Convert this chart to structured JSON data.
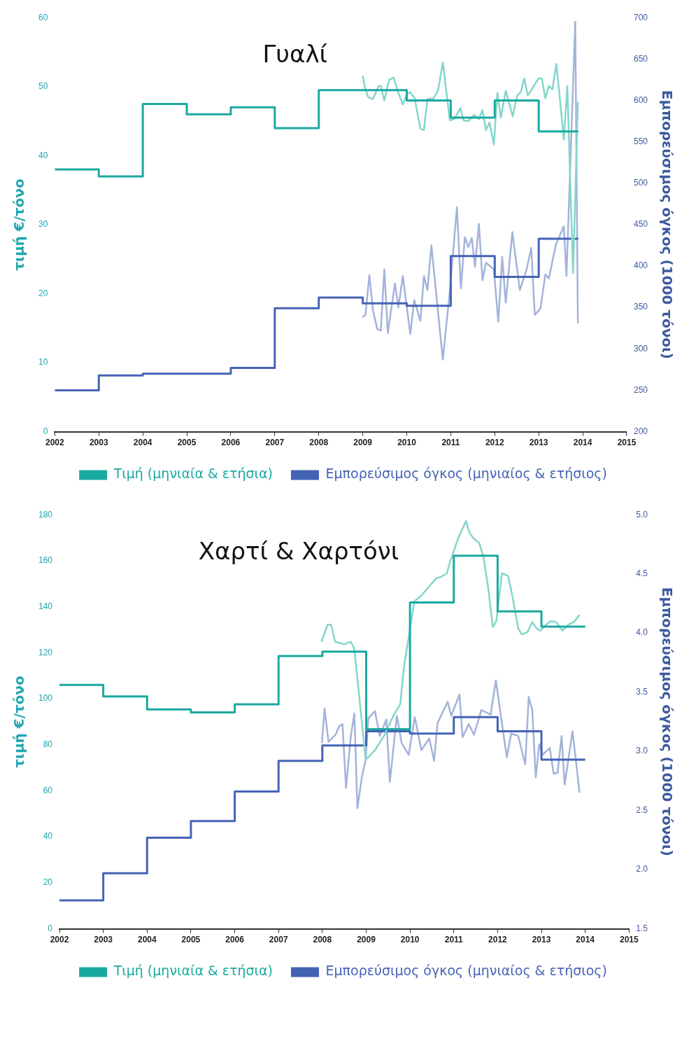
{
  "chart_data": [
    {
      "type": "line",
      "title": "Γυαλί",
      "ylabel": "τιμή €/τόνο",
      "y2label": "Εμπορεύσιμος όγκος (1000 τόνοι)",
      "xlim": [
        2002,
        2015
      ],
      "xticks": [
        2002,
        2003,
        2004,
        2005,
        2006,
        2007,
        2008,
        2009,
        2010,
        2011,
        2012,
        2013,
        2014,
        2015
      ],
      "ylim": [
        0,
        60
      ],
      "yticks": [
        0,
        10,
        20,
        30,
        40,
        50,
        60
      ],
      "y2lim": [
        200,
        700
      ],
      "y2ticks": [
        200,
        250,
        300,
        350,
        400,
        450,
        500,
        550,
        600,
        650,
        700
      ],
      "legend": "bottom",
      "series": [
        {
          "type": "step",
          "name": "Τιμή (μηνιαία & ετήσια)",
          "color": "#1aa9a0",
          "x": [
            2002,
            2003,
            2004,
            2005,
            2006,
            2007,
            2008,
            2009,
            2010,
            2011,
            2012,
            2013,
            2013.9
          ],
          "values": [
            38,
            37,
            47.5,
            46,
            47,
            44,
            49.5,
            49.5,
            48,
            45.5,
            48,
            43.5,
            43.5
          ]
        },
        {
          "type": "line",
          "color": "#84d6cb",
          "x": [
            2009.0,
            2009.04,
            2009.12,
            2009.23,
            2009.36,
            2009.41,
            2009.49,
            2009.6,
            2009.7,
            2009.81,
            2009.91,
            2010.0,
            2010.08,
            2010.18,
            2010.31,
            2010.39,
            2010.47,
            2010.61,
            2010.71,
            2010.82,
            2010.92,
            2010.98,
            2011.08,
            2011.22,
            2011.29,
            2011.4,
            2011.53,
            2011.64,
            2011.72,
            2011.8,
            2011.88,
            2011.98,
            2012.06,
            2012.14,
            2012.25,
            2012.41,
            2012.51,
            2012.59,
            2012.67,
            2012.75,
            2012.89,
            2013.0,
            2013.07,
            2013.15,
            2013.23,
            2013.31,
            2013.4,
            2013.49,
            2013.57,
            2013.65,
            2013.78,
            2013.89
          ],
          "values": [
            51.6,
            50.1,
            48.5,
            48.2,
            50.1,
            50.1,
            48.0,
            51.0,
            51.3,
            49.1,
            47.4,
            48.9,
            49.2,
            48.3,
            43.9,
            43.7,
            48.2,
            48.3,
            49.4,
            53.5,
            48.2,
            45.1,
            45.3,
            46.9,
            45.1,
            45.0,
            45.9,
            45.3,
            46.6,
            43.7,
            44.8,
            41.6,
            49.1,
            45.5,
            49.4,
            45.7,
            48.7,
            49.2,
            51.2,
            48.7,
            50.1,
            51.2,
            51.2,
            48.3,
            50.1,
            49.6,
            53.3,
            47.6,
            42.3,
            50.1,
            23.0,
            47.8
          ]
        },
        {
          "type": "step",
          "axis": "y2",
          "name": "Εμπορεύσιμος όγκος (μηνιαίος & ετήσιος)",
          "color": "#4563b5",
          "x": [
            2002,
            2003,
            2004,
            2005,
            2006,
            2007,
            2008,
            2009,
            2010,
            2011,
            2012,
            2013,
            2013.9
          ],
          "values": [
            250,
            268,
            270,
            270,
            277,
            349,
            362,
            355,
            352,
            412,
            387,
            433,
            433
          ]
        },
        {
          "type": "line",
          "axis": "y2",
          "color": "#a3b3da",
          "x": [
            2008.99,
            2009.06,
            2009.15,
            2009.23,
            2009.33,
            2009.41,
            2009.49,
            2009.57,
            2009.73,
            2009.81,
            2009.91,
            2010.08,
            2010.17,
            2010.31,
            2010.39,
            2010.47,
            2010.56,
            2010.82,
            2010.98,
            2011.14,
            2011.23,
            2011.32,
            2011.4,
            2011.48,
            2011.55,
            2011.64,
            2011.72,
            2011.8,
            2011.98,
            2012.08,
            2012.17,
            2012.25,
            2012.4,
            2012.57,
            2012.72,
            2012.83,
            2012.91,
            2013.04,
            2013.15,
            2013.23,
            2013.39,
            2013.57,
            2013.63,
            2013.83,
            2013.89
          ],
          "values": [
            338,
            341,
            389,
            347,
            324,
            322,
            396,
            319,
            379,
            350,
            388,
            318,
            359,
            334,
            388,
            371,
            425,
            287,
            371,
            471,
            373,
            435,
            423,
            434,
            399,
            451,
            383,
            404,
            396,
            333,
            411,
            356,
            441,
            371,
            395,
            422,
            341,
            349,
            390,
            385,
            426,
            448,
            388,
            695,
            331
          ]
        }
      ]
    },
    {
      "type": "line",
      "title": "Χαρτί & Χαρτόνι",
      "ylabel": "τιμή €/τόνο",
      "y2label": "Εμπορεύσιμος όγκος (1000 τόνοι)",
      "xlim": [
        2002,
        2015
      ],
      "xticks": [
        2002,
        2003,
        2004,
        2005,
        2006,
        2007,
        2008,
        2009,
        2010,
        2011,
        2012,
        2013,
        2014,
        2015
      ],
      "ylim": [
        0,
        180
      ],
      "yticks": [
        0,
        20,
        40,
        60,
        80,
        100,
        120,
        140,
        160,
        180
      ],
      "y2lim": [
        1.5,
        5
      ],
      "y2ticks": [
        1.5,
        {
          "value": 2,
          "label": "2.0"
        },
        2.5,
        {
          "value": 3,
          "label": "3.0"
        },
        3.5,
        {
          "value": 4,
          "label": "4.0"
        },
        4.5,
        {
          "value": 5,
          "label": "5.0"
        }
      ],
      "legend": "bottom",
      "series": [
        {
          "type": "step",
          "name": "Τιμή (μηνιαία & ετήσια)",
          "color": "#1aa9a0",
          "x": [
            2002,
            2003,
            2004,
            2005,
            2006,
            2007,
            2008,
            2009,
            2010,
            2011,
            2012,
            2013,
            2014
          ],
          "values": [
            106,
            101,
            95.4,
            94.1,
            97.6,
            118.6,
            120.5,
            86.8,
            141.9,
            162.2,
            138,
            131.4,
            131.4
          ]
        },
        {
          "type": "line",
          "color": "#84d6cb",
          "x": [
            2007.98,
            2008.12,
            2008.2,
            2008.29,
            2008.51,
            2008.65,
            2008.73,
            2008.99,
            2009.2,
            2009.41,
            2009.62,
            2009.78,
            2009.86,
            2010.1,
            2010.26,
            2010.6,
            2010.7,
            2010.84,
            2010.92,
            2011.1,
            2011.28,
            2011.36,
            2011.47,
            2011.58,
            2011.68,
            2011.79,
            2011.89,
            2011.97,
            2012.1,
            2012.24,
            2012.34,
            2012.47,
            2012.55,
            2012.68,
            2012.79,
            2012.89,
            2012.97,
            2013.11,
            2013.21,
            2013.34,
            2013.48,
            2013.61,
            2013.74,
            2013.87
          ],
          "values": [
            124.8,
            132.2,
            132.2,
            124.8,
            123.7,
            124.8,
            121.6,
            73.4,
            77.6,
            84,
            92.6,
            97.7,
            113.6,
            142.3,
            144.9,
            152.4,
            152.9,
            154.5,
            159.8,
            169.8,
            177.3,
            172,
            169.3,
            167.7,
            161.4,
            147.6,
            131.2,
            133.8,
            154.5,
            153.4,
            144.4,
            130.6,
            128,
            129,
            133.3,
            130.6,
            129.6,
            132.2,
            133.8,
            133.3,
            129.6,
            132.2,
            133.3,
            136.5
          ]
        },
        {
          "type": "step",
          "axis": "y2",
          "name": "Εμπορεύσιμος όγκος (μηνιαίος & ετήσιος)",
          "color": "#4563b5",
          "x": [
            2002,
            2003,
            2004,
            2005,
            2006,
            2007,
            2008,
            2009,
            2010,
            2011,
            2012,
            2013,
            2014
          ],
          "values": [
            1.74,
            1.97,
            2.27,
            2.41,
            2.66,
            2.92,
            3.05,
            3.17,
            3.15,
            3.29,
            3.17,
            2.93,
            2.93
          ]
        },
        {
          "type": "line",
          "axis": "y2",
          "color": "#a3b3da",
          "x": [
            2007.99,
            2008.05,
            2008.14,
            2008.3,
            2008.38,
            2008.46,
            2008.54,
            2008.65,
            2008.73,
            2008.8,
            2008.91,
            2008.99,
            2009.05,
            2009.2,
            2009.31,
            2009.46,
            2009.54,
            2009.7,
            2009.81,
            2009.97,
            2010.11,
            2010.26,
            2010.44,
            2010.55,
            2010.63,
            2010.86,
            2010.94,
            2011.13,
            2011.2,
            2011.34,
            2011.46,
            2011.63,
            2011.84,
            2011.96,
            2012.09,
            2012.21,
            2012.31,
            2012.47,
            2012.63,
            2012.71,
            2012.79,
            2012.87,
            2012.95,
            2013.03,
            2013.19,
            2013.28,
            2013.37,
            2013.46,
            2013.53,
            2013.71,
            2013.87
          ],
          "values": [
            3.07,
            3.36,
            3.08,
            3.14,
            3.21,
            3.23,
            2.69,
            3.13,
            3.32,
            2.52,
            2.8,
            2.93,
            3.28,
            3.34,
            3.13,
            3.27,
            2.74,
            3.3,
            3.07,
            2.97,
            3.29,
            3.01,
            3.11,
            2.92,
            3.24,
            3.42,
            3.3,
            3.48,
            3.12,
            3.23,
            3.14,
            3.35,
            3.31,
            3.6,
            3.26,
            2.95,
            3.15,
            3.13,
            2.89,
            3.46,
            3.35,
            2.78,
            3.06,
            2.97,
            3.03,
            2.81,
            2.82,
            3.13,
            2.72,
            3.17,
            2.65
          ]
        }
      ]
    }
  ]
}
